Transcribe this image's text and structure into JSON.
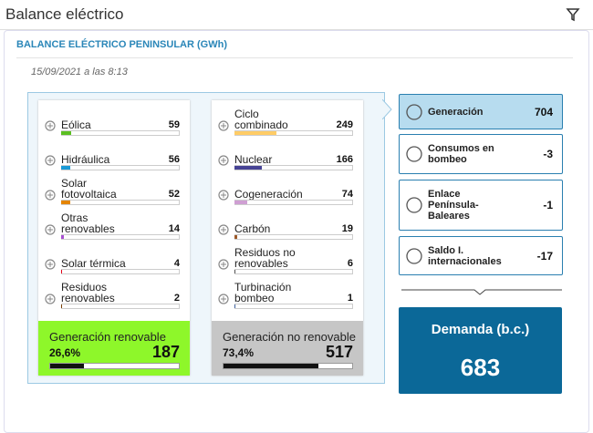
{
  "header": {
    "title": "Balance eléctrico"
  },
  "panel": {
    "title": "BALANCE ELÉCTRICO PENINSULAR (GWh)",
    "date": "15/09/2021 a las 8:13"
  },
  "renewable": {
    "items": [
      {
        "label": "Eólica",
        "value": 59,
        "color": "#5bbf21"
      },
      {
        "label": "Hidráulica",
        "value": 56,
        "color": "#1a9ad6"
      },
      {
        "label": "Solar fotovoltaica",
        "value": 52,
        "color": "#e48500"
      },
      {
        "label": "Otras renovables",
        "value": 14,
        "color": "#a84fd1"
      },
      {
        "label": "Solar térmica",
        "value": 4,
        "color": "#e2001a"
      },
      {
        "label": "Residuos renovables",
        "value": 2,
        "color": "#7b3f00"
      }
    ],
    "total": {
      "label": "Generación renovable",
      "share": "26,6%",
      "value": 187
    }
  },
  "non_renewable": {
    "items": [
      {
        "label": "Ciclo combinado",
        "value": 249,
        "color": "#ffcc66"
      },
      {
        "label": "Nuclear",
        "value": 166,
        "color": "#464394"
      },
      {
        "label": "Cogeneración",
        "value": 74,
        "color": "#cf9fd3"
      },
      {
        "label": "Carbón",
        "value": 19,
        "color": "#9c5a2a"
      },
      {
        "label": "Residuos no renovables",
        "value": 6,
        "color": "#505050"
      },
      {
        "label": "Turbinación bombeo",
        "value": 1,
        "color": "#3c5f9c"
      }
    ],
    "total": {
      "label": "Generación no renovable",
      "share": "73,4%",
      "value": 517
    }
  },
  "summary": [
    {
      "label": "Generación",
      "value": 704
    },
    {
      "label": "Consumos en bombeo",
      "value": -3
    },
    {
      "label": "Enlace Península-Baleares",
      "value": -1
    },
    {
      "label": "Saldo I. internacionales",
      "value": -17
    }
  ],
  "demand": {
    "label": "Demanda (b.c.)",
    "value": 683
  }
}
